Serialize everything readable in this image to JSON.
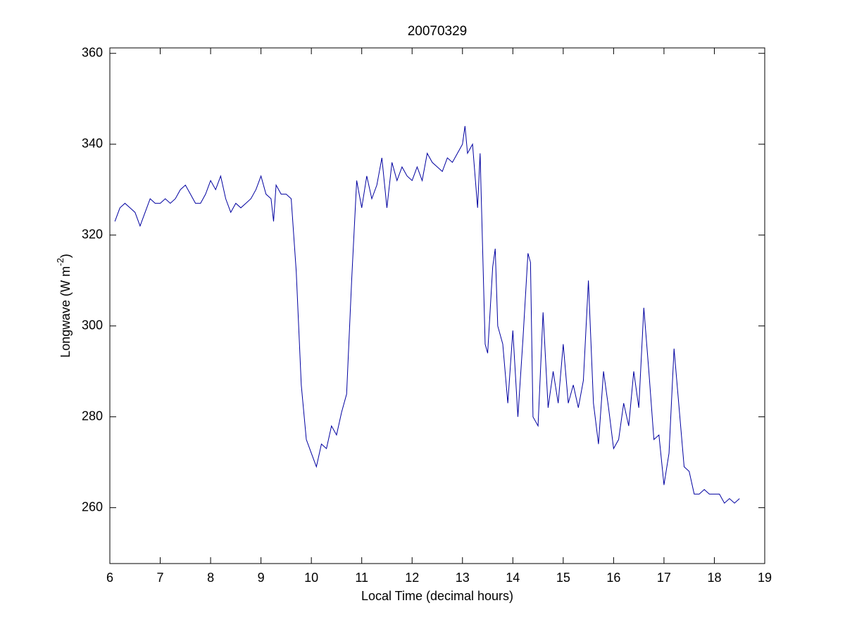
{
  "chart_data": {
    "type": "line",
    "title": "20070329",
    "xlabel": "Local Time (decimal hours)",
    "ylabel": {
      "main": "Longwave (W m",
      "sup": "-2",
      "end": ")"
    },
    "x": [
      6.1,
      6.2,
      6.3,
      6.4,
      6.5,
      6.6,
      6.7,
      6.8,
      6.9,
      7.0,
      7.1,
      7.2,
      7.3,
      7.4,
      7.5,
      7.6,
      7.7,
      7.8,
      7.9,
      8.0,
      8.1,
      8.2,
      8.3,
      8.4,
      8.5,
      8.6,
      8.7,
      8.8,
      8.9,
      9.0,
      9.1,
      9.2,
      9.25,
      9.3,
      9.4,
      9.5,
      9.6,
      9.7,
      9.8,
      9.9,
      10.0,
      10.1,
      10.2,
      10.3,
      10.4,
      10.5,
      10.6,
      10.7,
      10.8,
      10.9,
      11.0,
      11.1,
      11.2,
      11.3,
      11.4,
      11.5,
      11.6,
      11.7,
      11.8,
      11.9,
      12.0,
      12.1,
      12.2,
      12.3,
      12.4,
      12.5,
      12.6,
      12.7,
      12.8,
      12.9,
      13.0,
      13.05,
      13.1,
      13.2,
      13.3,
      13.35,
      13.45,
      13.5,
      13.6,
      13.65,
      13.7,
      13.8,
      13.9,
      14.0,
      14.1,
      14.2,
      14.3,
      14.35,
      14.4,
      14.5,
      14.6,
      14.7,
      14.8,
      14.9,
      15.0,
      15.1,
      15.2,
      15.3,
      15.4,
      15.5,
      15.6,
      15.7,
      15.8,
      15.9,
      16.0,
      16.1,
      16.2,
      16.3,
      16.4,
      16.5,
      16.6,
      16.7,
      16.8,
      16.9,
      17.0,
      17.1,
      17.2,
      17.3,
      17.4,
      17.5,
      17.6,
      17.7,
      17.8,
      17.9,
      18.0,
      18.1,
      18.2,
      18.3,
      18.4,
      18.5
    ],
    "series": [
      {
        "color": "#0000a0",
        "values": [
          323,
          326,
          327,
          326,
          325,
          322,
          325,
          328,
          327,
          327,
          328,
          327,
          328,
          330,
          331,
          329,
          327,
          327,
          329,
          332,
          330,
          333,
          328,
          325,
          327,
          326,
          327,
          328,
          330,
          333,
          329,
          328,
          323,
          331,
          329,
          329,
          328,
          312,
          287,
          275,
          272,
          269,
          274,
          273,
          278,
          276,
          281,
          285,
          310,
          332,
          326,
          333,
          328,
          331,
          337,
          326,
          336,
          332,
          335,
          333,
          332,
          335,
          332,
          338,
          336,
          335,
          334,
          337,
          336,
          338,
          340,
          344,
          338,
          340,
          326,
          338,
          296,
          294,
          313,
          317,
          300,
          296,
          283,
          299,
          280,
          297,
          316,
          314,
          280,
          278,
          303,
          282,
          290,
          283,
          296,
          283,
          287,
          282,
          288,
          310,
          283,
          274,
          290,
          282,
          273,
          275,
          283,
          278,
          290,
          282,
          304,
          290,
          275,
          276,
          265,
          272,
          295,
          282,
          269,
          268,
          263,
          263,
          264,
          263,
          263,
          263,
          261,
          262,
          261,
          262
        ]
      }
    ],
    "xlim": [
      6,
      19
    ],
    "xticks": [
      6,
      7,
      8,
      9,
      10,
      11,
      12,
      13,
      14,
      15,
      16,
      17,
      18,
      19
    ],
    "ylim": [
      247.7,
      361.2
    ],
    "yticks": [
      260,
      280,
      300,
      320,
      340,
      360
    ]
  }
}
